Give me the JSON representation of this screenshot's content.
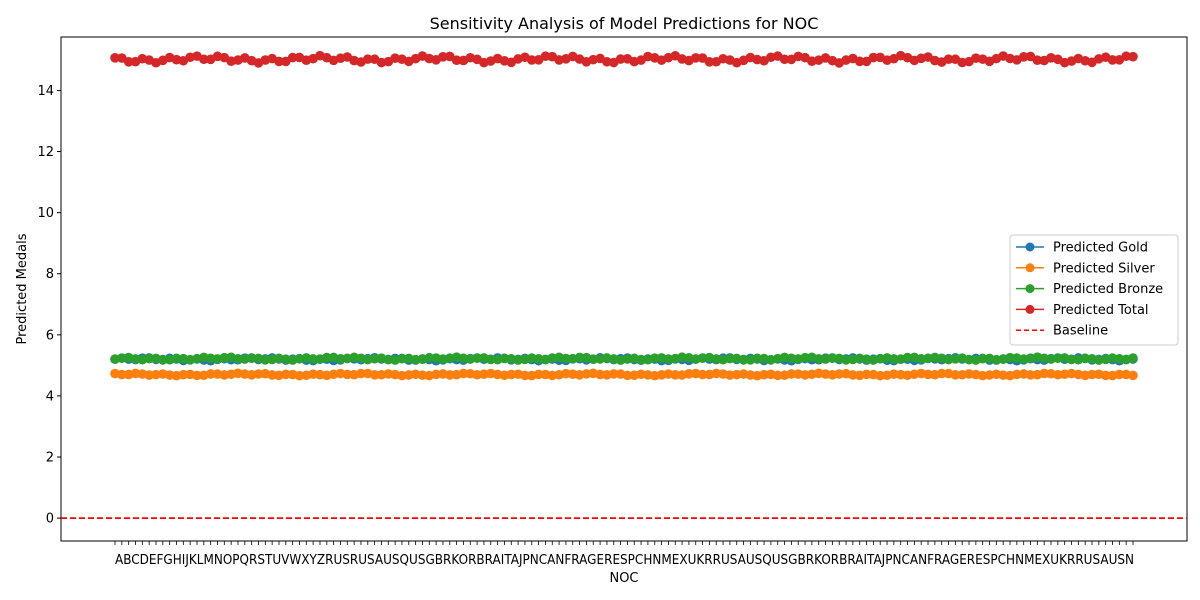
{
  "chart_data": {
    "type": "line",
    "title": "Sensitivity Analysis of Model Predictions for NOC",
    "xlabel": "NOC",
    "ylabel": "Predicted Medals",
    "ylim": [
      -0.75,
      15.75
    ],
    "yticks": [
      0,
      2,
      4,
      6,
      8,
      10,
      12,
      14
    ],
    "x_count": 150,
    "x_first_label": "A",
    "x_last_label": "N",
    "x_tick_text": "ABCDEFGHIJKLMNOPQRSTUVWXYZRUSRUSAUSQUSGBRKORBRAITAJPNCANFRAGERESPCHNMEXUKRRUSAUSQUSGBRKORBRAITAJPNCANFRAGERESPCHNMEXUKRRUSAUSN",
    "legend_position": "center-right",
    "series": [
      {
        "name": "Predicted Gold",
        "color": "#1f77b4",
        "base": 5.2,
        "jitter": 0.05
      },
      {
        "name": "Predicted Silver",
        "color": "#ff7f0e",
        "base": 4.7,
        "jitter": 0.04
      },
      {
        "name": "Predicted Bronze",
        "color": "#2ca02c",
        "base": 5.22,
        "jitter": 0.05
      },
      {
        "name": "Predicted Total",
        "color": "#d62728",
        "base": 15.02,
        "jitter": 0.12
      }
    ],
    "baseline": {
      "name": "Baseline",
      "value": 0,
      "color": "#ff0000",
      "style": "dashed"
    }
  }
}
